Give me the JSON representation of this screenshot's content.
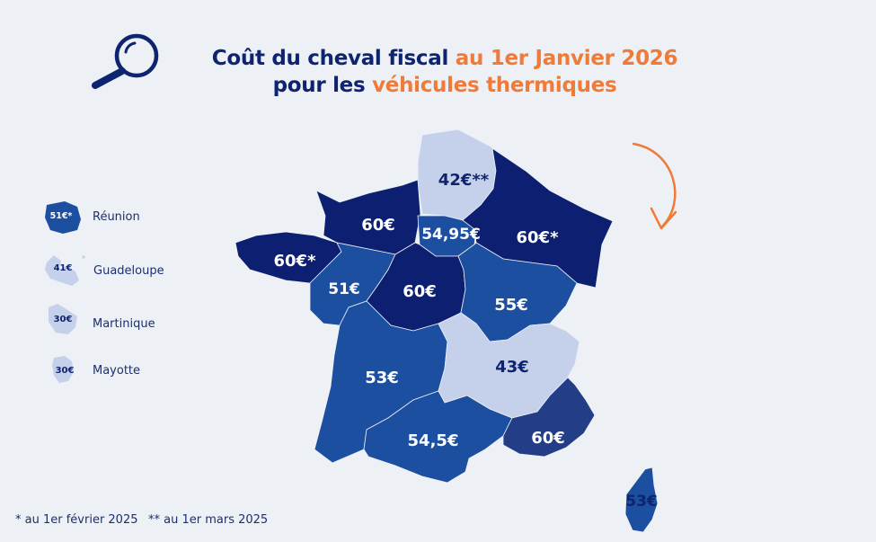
{
  "title": {
    "line1_part1": "Coût du cheval fiscal",
    "line1_part2": "au 1er Janvier 2026",
    "line2_part1": "pour les",
    "line2_part2": "véhicules thermiques"
  },
  "icons": {
    "magnifier": "magnifying-glass-icon",
    "arrow": "curved-arrow-icon"
  },
  "colors": {
    "navy": "#0f2470",
    "dark_navy": "#0c1f70",
    "mid_blue": "#1d4fa1",
    "slate_blue": "#233e86",
    "light_blue": "#c5d1ea",
    "orange": "#f07a37",
    "background": "#edf0f4"
  },
  "regions": [
    {
      "name": "Hauts-de-France",
      "value": "42€**",
      "color": "#c5d1ea",
      "text_color": "#0f2470"
    },
    {
      "name": "Normandie",
      "value": "60€",
      "color": "#0c1f70",
      "text_color": "#ffffff"
    },
    {
      "name": "Île-de-France",
      "value": "54,95€",
      "color": "#1d4fa1",
      "text_color": "#ffffff"
    },
    {
      "name": "Grand Est",
      "value": "60€*",
      "color": "#0c1f70",
      "text_color": "#ffffff"
    },
    {
      "name": "Bretagne",
      "value": "60€*",
      "color": "#0c1f70",
      "text_color": "#ffffff"
    },
    {
      "name": "Pays de la Loire",
      "value": "51€",
      "color": "#1d4fa1",
      "text_color": "#ffffff"
    },
    {
      "name": "Centre-Val de Loire",
      "value": "60€",
      "color": "#0c1f70",
      "text_color": "#ffffff"
    },
    {
      "name": "Bourgogne-Franche-Comté",
      "value": "55€",
      "color": "#1d4fa1",
      "text_color": "#ffffff"
    },
    {
      "name": "Nouvelle-Aquitaine",
      "value": "53€",
      "color": "#1d4fa1",
      "text_color": "#ffffff"
    },
    {
      "name": "Auvergne-Rhône-Alpes",
      "value": "43€",
      "color": "#c5d1ea",
      "text_color": "#0f2470"
    },
    {
      "name": "Occitanie",
      "value": "54,5€",
      "color": "#1d4fa1",
      "text_color": "#ffffff"
    },
    {
      "name": "Provence-Alpes-Côte d'Azur",
      "value": "60€",
      "color": "#233e86",
      "text_color": "#ffffff"
    },
    {
      "name": "Corse",
      "value": "53€",
      "color": "#1d4fa1",
      "text_color": "#0f2470"
    }
  ],
  "overseas": [
    {
      "name": "Réunion",
      "value": "51€*",
      "color": "#1d4fa1",
      "text_color": "#ffffff"
    },
    {
      "name": "Guadeloupe",
      "value": "41€",
      "color": "#c5d1ea",
      "text_color": "#0f2470"
    },
    {
      "name": "Martinique",
      "value": "30€",
      "color": "#c5d1ea",
      "text_color": "#0f2470"
    },
    {
      "name": "Mayotte",
      "value": "30€",
      "color": "#c5d1ea",
      "text_color": "#0f2470"
    }
  ],
  "footnotes": {
    "single": "* au 1er février 2025",
    "double": "** au 1er mars 2025"
  }
}
